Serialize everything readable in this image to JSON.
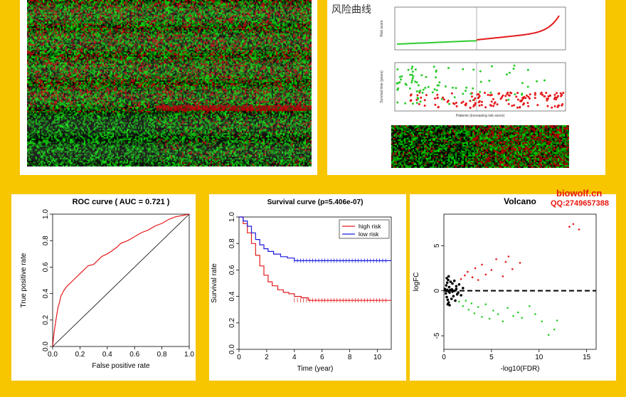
{
  "watermark": {
    "site": "biowolf.cn",
    "qq": "QQ:2749657388"
  },
  "risk_panel": {
    "title": "风险曲线",
    "xlabel_mid": "Patients (increasing risk socre)",
    "ylabel_top": "Risk score",
    "ylabel_mid": "Survival time (years)"
  },
  "colors": {
    "high": "#e41a1c",
    "low": "#1a1adf",
    "green": "#2ecc2e",
    "background": "#f7c600"
  },
  "chart_data": [
    {
      "type": "line",
      "title": "ROC curve ( AUC =  0.721 )",
      "xlabel": "False positive rate",
      "ylabel": "True positive rate",
      "xlim": [
        0,
        1
      ],
      "ylim": [
        0,
        1
      ],
      "xticks": [
        "0.0",
        "0.2",
        "0.4",
        "0.6",
        "0.8",
        "1.0"
      ],
      "yticks": [
        "0.0",
        "0.2",
        "0.4",
        "0.6",
        "0.8",
        "1.0"
      ],
      "series": [
        {
          "color": "#e41a1c",
          "x": [
            0,
            0.005,
            0.01,
            0.02,
            0.03,
            0.04,
            0.05,
            0.06,
            0.08,
            0.1,
            0.12,
            0.15,
            0.18,
            0.2,
            0.23,
            0.26,
            0.3,
            0.33,
            0.36,
            0.4,
            0.43,
            0.47,
            0.5,
            0.55,
            0.6,
            0.65,
            0.7,
            0.75,
            0.8,
            0.85,
            0.9,
            0.95,
            1.0
          ],
          "y": [
            0,
            0.05,
            0.1,
            0.17,
            0.24,
            0.3,
            0.33,
            0.38,
            0.42,
            0.45,
            0.47,
            0.5,
            0.53,
            0.55,
            0.58,
            0.61,
            0.62,
            0.65,
            0.68,
            0.7,
            0.72,
            0.75,
            0.78,
            0.8,
            0.83,
            0.86,
            0.88,
            0.91,
            0.93,
            0.96,
            0.98,
            0.99,
            1.0
          ]
        },
        {
          "color": "#000000",
          "x": [
            0,
            1
          ],
          "y": [
            0,
            1
          ]
        }
      ]
    },
    {
      "type": "line",
      "title": "Survival curve (p=5.406e-07)",
      "xlabel": "Time (year)",
      "ylabel": "Survival rate",
      "xlim": [
        0,
        11
      ],
      "ylim": [
        0,
        1
      ],
      "xticks": [
        "0",
        "2",
        "4",
        "6",
        "8",
        "10"
      ],
      "yticks": [
        "0.0",
        "0.2",
        "0.4",
        "0.6",
        "0.8",
        "1.0"
      ],
      "legend": "top-right",
      "series": [
        {
          "name": "high risk",
          "color": "#e41a1c",
          "x": [
            0,
            0.3,
            0.6,
            0.9,
            1.2,
            1.5,
            1.8,
            2.1,
            2.4,
            2.8,
            3.2,
            3.6,
            4.0,
            4.5,
            5.0,
            11
          ],
          "y": [
            1.0,
            0.95,
            0.88,
            0.8,
            0.71,
            0.63,
            0.56,
            0.51,
            0.48,
            0.45,
            0.43,
            0.42,
            0.4,
            0.39,
            0.37,
            0.37
          ]
        },
        {
          "name": "low risk",
          "color": "#1a1adf",
          "x": [
            0,
            0.3,
            0.6,
            0.9,
            1.2,
            1.5,
            1.8,
            2.1,
            2.5,
            3.0,
            3.5,
            4.0,
            11
          ],
          "y": [
            1.0,
            0.97,
            0.93,
            0.88,
            0.83,
            0.79,
            0.76,
            0.74,
            0.72,
            0.7,
            0.69,
            0.67,
            0.67
          ]
        }
      ]
    },
    {
      "type": "scatter",
      "title": "Volcano",
      "xlabel": "-log10(FDR)",
      "ylabel": "logFC",
      "xlim": [
        0,
        16
      ],
      "ylim": [
        -6.5,
        8.5
      ],
      "xticks": [
        "0",
        "5",
        "10",
        "15"
      ],
      "yticks": [
        "-5",
        "0",
        "5"
      ],
      "reference_line": {
        "y": 0,
        "style": "dashed"
      },
      "series": [
        {
          "color": "#e41a1c",
          "x": [
            1.8,
            2.2,
            2.5,
            3.0,
            3.3,
            3.6,
            4.0,
            4.4,
            5.0,
            5.5,
            6.2,
            6.5,
            6.8,
            7.2,
            8.0,
            13.2,
            13.6,
            14.2
          ],
          "y": [
            1.3,
            1.7,
            2.1,
            1.5,
            2.5,
            1.2,
            2.9,
            1.8,
            2.3,
            3.5,
            1.6,
            3.2,
            3.8,
            2.4,
            3.1,
            7.1,
            7.4,
            6.8
          ]
        },
        {
          "color": "#2ecc2e",
          "x": [
            1.6,
            2.0,
            2.3,
            2.6,
            2.9,
            3.2,
            3.6,
            4.0,
            4.4,
            4.8,
            5.2,
            5.7,
            6.2,
            6.7,
            7.3,
            7.8,
            8.2,
            9.0,
            9.6,
            10.3,
            11.0,
            11.6,
            11.9
          ],
          "y": [
            -1.2,
            -1.7,
            -1.1,
            -2.1,
            -1.4,
            -2.5,
            -1.8,
            -2.9,
            -1.5,
            -3.1,
            -2.2,
            -2.6,
            -3.4,
            -1.9,
            -2.8,
            -2.4,
            -3.0,
            -1.7,
            -2.6,
            -3.4,
            -4.9,
            -4.3,
            -3.3
          ]
        },
        {
          "color": "#000000",
          "x": [
            0.1,
            0.2,
            0.25,
            0.3,
            0.35,
            0.4,
            0.45,
            0.5,
            0.55,
            0.6,
            0.7,
            0.8,
            0.9,
            1.0,
            1.1,
            1.2,
            1.3,
            1.4,
            1.6,
            1.8,
            2.0,
            0.3,
            0.4,
            0.5,
            0.6,
            0.7,
            0.9,
            1.1,
            1.3,
            1.5,
            0.2,
            0.35,
            0.45,
            0.65,
            0.85
          ],
          "y": [
            0.2,
            -0.3,
            0.6,
            -0.7,
            0.9,
            -1.0,
            1.2,
            -1.3,
            0.4,
            -0.2,
            1.0,
            -0.9,
            0.8,
            -0.6,
            1.1,
            -1.1,
            0.5,
            -0.4,
            0.7,
            -0.5,
            0.3,
            1.4,
            -1.5,
            1.6,
            -1.6,
            0.1,
            -0.1,
            0.0,
            0.2,
            -0.2,
            0.0,
            0.1,
            -0.05,
            0.05,
            0.15
          ]
        }
      ]
    }
  ]
}
